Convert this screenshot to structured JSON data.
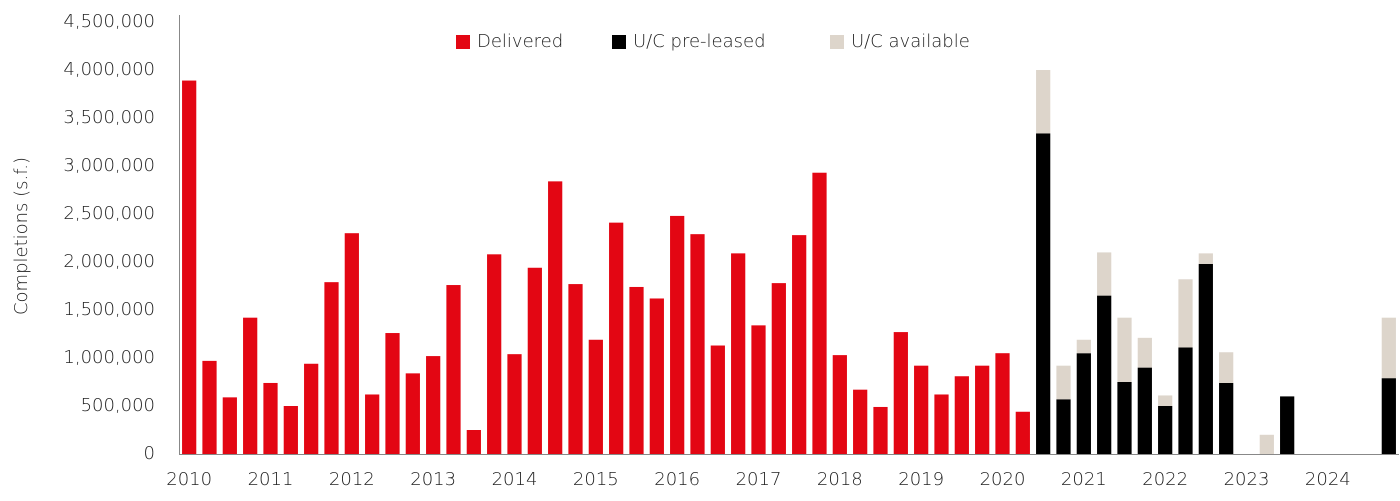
{
  "chart_data": {
    "type": "stacked_bar",
    "y_label": "Completions (s.f.)",
    "categories": [
      "2010",
      null,
      null,
      null,
      "2011",
      null,
      null,
      null,
      "2012",
      null,
      null,
      null,
      "2013",
      null,
      null,
      null,
      "2014",
      null,
      null,
      null,
      "2015",
      null,
      null,
      null,
      "2016",
      null,
      null,
      null,
      "2017",
      null,
      null,
      null,
      "2018",
      null,
      null,
      null,
      "2019",
      null,
      null,
      null,
      "2020",
      null,
      null,
      null,
      "2021",
      null,
      null,
      null,
      "2022",
      null,
      null,
      null,
      "2023",
      null,
      null,
      null,
      "2024",
      null,
      null,
      null
    ],
    "series": [
      {
        "name": "Delivered",
        "color": "#e30613",
        "values": [
          3890000,
          970000,
          590000,
          1420000,
          740000,
          500000,
          940000,
          1790000,
          2300000,
          620000,
          1260000,
          840000,
          1020000,
          1760000,
          250000,
          2080000,
          1040000,
          1940000,
          2840000,
          1770000,
          1190000,
          2410000,
          1740000,
          1620000,
          2480000,
          2290000,
          1130000,
          2090000,
          1340000,
          1780000,
          2280000,
          2930000,
          1030000,
          670000,
          490000,
          1270000,
          920000,
          620000,
          810000,
          920000,
          1050000,
          440000,
          null,
          null,
          null,
          null,
          null,
          null,
          null,
          null,
          null,
          null,
          null,
          null,
          null,
          null,
          null,
          null,
          null,
          null
        ]
      },
      {
        "name": "U/C pre-leased",
        "color": "#000000",
        "values": [
          null,
          null,
          null,
          null,
          null,
          null,
          null,
          null,
          null,
          null,
          null,
          null,
          null,
          null,
          null,
          null,
          null,
          null,
          null,
          null,
          null,
          null,
          null,
          null,
          null,
          null,
          null,
          null,
          null,
          null,
          null,
          null,
          null,
          null,
          null,
          null,
          null,
          null,
          null,
          null,
          null,
          null,
          3340000,
          570000,
          1050000,
          1650000,
          750000,
          900000,
          500000,
          1110000,
          1980000,
          740000,
          null,
          null,
          600000,
          null,
          null,
          null,
          null,
          790000
        ]
      },
      {
        "name": "U/C available",
        "color": "#ddd5cb",
        "values": [
          null,
          null,
          null,
          null,
          null,
          null,
          null,
          null,
          null,
          null,
          null,
          null,
          null,
          null,
          null,
          null,
          null,
          null,
          null,
          null,
          null,
          null,
          null,
          null,
          null,
          null,
          null,
          null,
          null,
          null,
          null,
          null,
          null,
          null,
          null,
          null,
          null,
          null,
          null,
          null,
          null,
          null,
          660000,
          350000,
          140000,
          450000,
          670000,
          310000,
          110000,
          710000,
          110000,
          320000,
          null,
          200000,
          null,
          null,
          null,
          null,
          null,
          630000
        ]
      }
    ],
    "ylim": [
      0,
      4500000
    ],
    "yticks": [
      0,
      {
        "value": 500000,
        "label": "500,000"
      },
      {
        "value": 1000000,
        "label": "1,000,000"
      },
      {
        "value": 1500000,
        "label": "1,500,000"
      },
      {
        "value": 2000000,
        "label": "2,000,000"
      },
      {
        "value": 2500000,
        "label": "2,500,000"
      },
      {
        "value": 3000000,
        "label": "3,000,000"
      },
      {
        "value": 3500000,
        "label": "3,500,000"
      },
      {
        "value": 4000000,
        "label": "4,000,000"
      },
      {
        "value": 4500000,
        "label": "4,500,000"
      }
    ],
    "grid": false,
    "legend": "top"
  }
}
